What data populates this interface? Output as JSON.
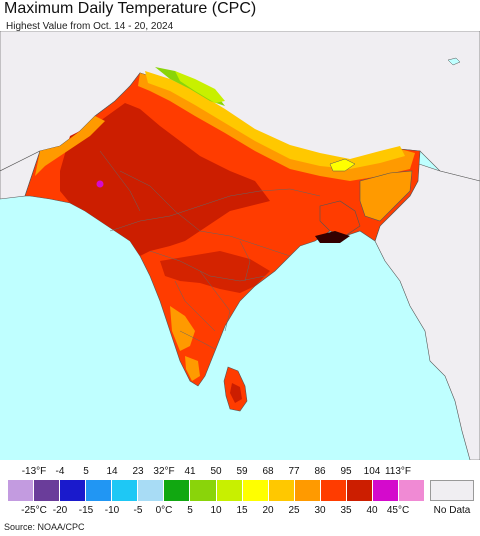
{
  "header": {
    "title": "Maximum Daily Temperature (CPC)",
    "subtitle": "Highest Value from Oct. 14 - 20, 2024"
  },
  "map": {
    "ocean_color": "#bfffff",
    "land_no_data_color": "#f0eef2",
    "border_color": "#555555"
  },
  "legend": {
    "fahrenheit_ticks": [
      "-13°F",
      "-4",
      "5",
      "14",
      "23",
      "32°F",
      "41",
      "50",
      "59",
      "68",
      "77",
      "86",
      "95",
      "104",
      "113°F"
    ],
    "celsius_ticks": [
      "-25°C",
      "-20",
      "-15",
      "-10",
      "-5",
      "0°C",
      "5",
      "10",
      "15",
      "20",
      "25",
      "30",
      "35",
      "40",
      "45°C"
    ],
    "colors": [
      "#c39be0",
      "#6a3d9a",
      "#1a1acc",
      "#2196f3",
      "#1ec8f5",
      "#a8dcf5",
      "#11a811",
      "#8ad40a",
      "#c8f000",
      "#ffff00",
      "#ffc800",
      "#ff9a00",
      "#ff3c00",
      "#cc1e00",
      "#d40acc",
      "#f08ad4"
    ],
    "no_data_label": "No Data"
  },
  "footer": {
    "source": "Source: NOAA/CPC"
  }
}
